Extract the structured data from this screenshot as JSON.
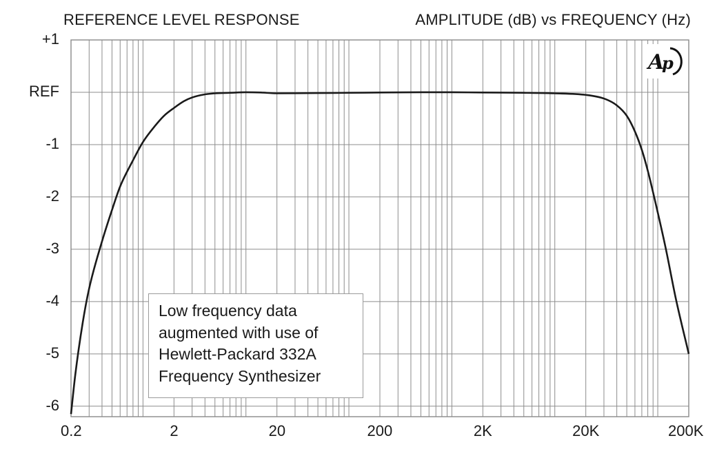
{
  "chart_data": {
    "type": "line",
    "title_left": "REFERENCE LEVEL RESPONSE",
    "title_right": "AMPLITUDE (dB) vs FREQUENCY (Hz)",
    "x_scale": "log",
    "xlim": [
      0.2,
      200000
    ],
    "ylim": [
      -6.2,
      1
    ],
    "x_tick_labels": [
      {
        "value": 0.2,
        "label": "0.2"
      },
      {
        "value": 2,
        "label": "2"
      },
      {
        "value": 20,
        "label": "20"
      },
      {
        "value": 200,
        "label": "200"
      },
      {
        "value": 2000,
        "label": "2K"
      },
      {
        "value": 20000,
        "label": "20K"
      },
      {
        "value": 200000,
        "label": "200K"
      }
    ],
    "y_tick_labels": [
      {
        "value": 1,
        "label": "+1"
      },
      {
        "value": 0,
        "label": "REF"
      },
      {
        "value": -1,
        "label": "-1"
      },
      {
        "value": -2,
        "label": "-2"
      },
      {
        "value": -3,
        "label": "-3"
      },
      {
        "value": -4,
        "label": "-4"
      },
      {
        "value": -5,
        "label": "-5"
      },
      {
        "value": -6,
        "label": "-6"
      }
    ],
    "grid": true,
    "series": [
      {
        "x": [
          0.2,
          0.22,
          0.26,
          0.3,
          0.4,
          0.5,
          0.6,
          0.8,
          1.0,
          1.3,
          1.6,
          2.0,
          2.5,
          3.0,
          4.0,
          5.0,
          7.0,
          10,
          14,
          20,
          50,
          100,
          200,
          500,
          1000,
          2000,
          5000,
          10000,
          20000,
          30000,
          40000,
          50000,
          60000,
          70000,
          80000,
          100000,
          120000,
          150000,
          200000
        ],
        "y": [
          -6.15,
          -5.4,
          -4.4,
          -3.75,
          -2.85,
          -2.25,
          -1.8,
          -1.3,
          -0.95,
          -0.65,
          -0.45,
          -0.3,
          -0.17,
          -0.1,
          -0.04,
          -0.02,
          -0.01,
          0.0,
          -0.005,
          -0.02,
          -0.015,
          -0.01,
          -0.005,
          0.0,
          0.0,
          -0.005,
          -0.01,
          -0.02,
          -0.05,
          -0.12,
          -0.25,
          -0.45,
          -0.75,
          -1.1,
          -1.5,
          -2.3,
          -3.0,
          -3.95,
          -5.0
        ]
      }
    ],
    "annotations": [
      "Low frequency data\naugmented with use of\nHewlett-Packard 332A\nFrequency Synthesizer"
    ],
    "logo_text": "AP"
  }
}
